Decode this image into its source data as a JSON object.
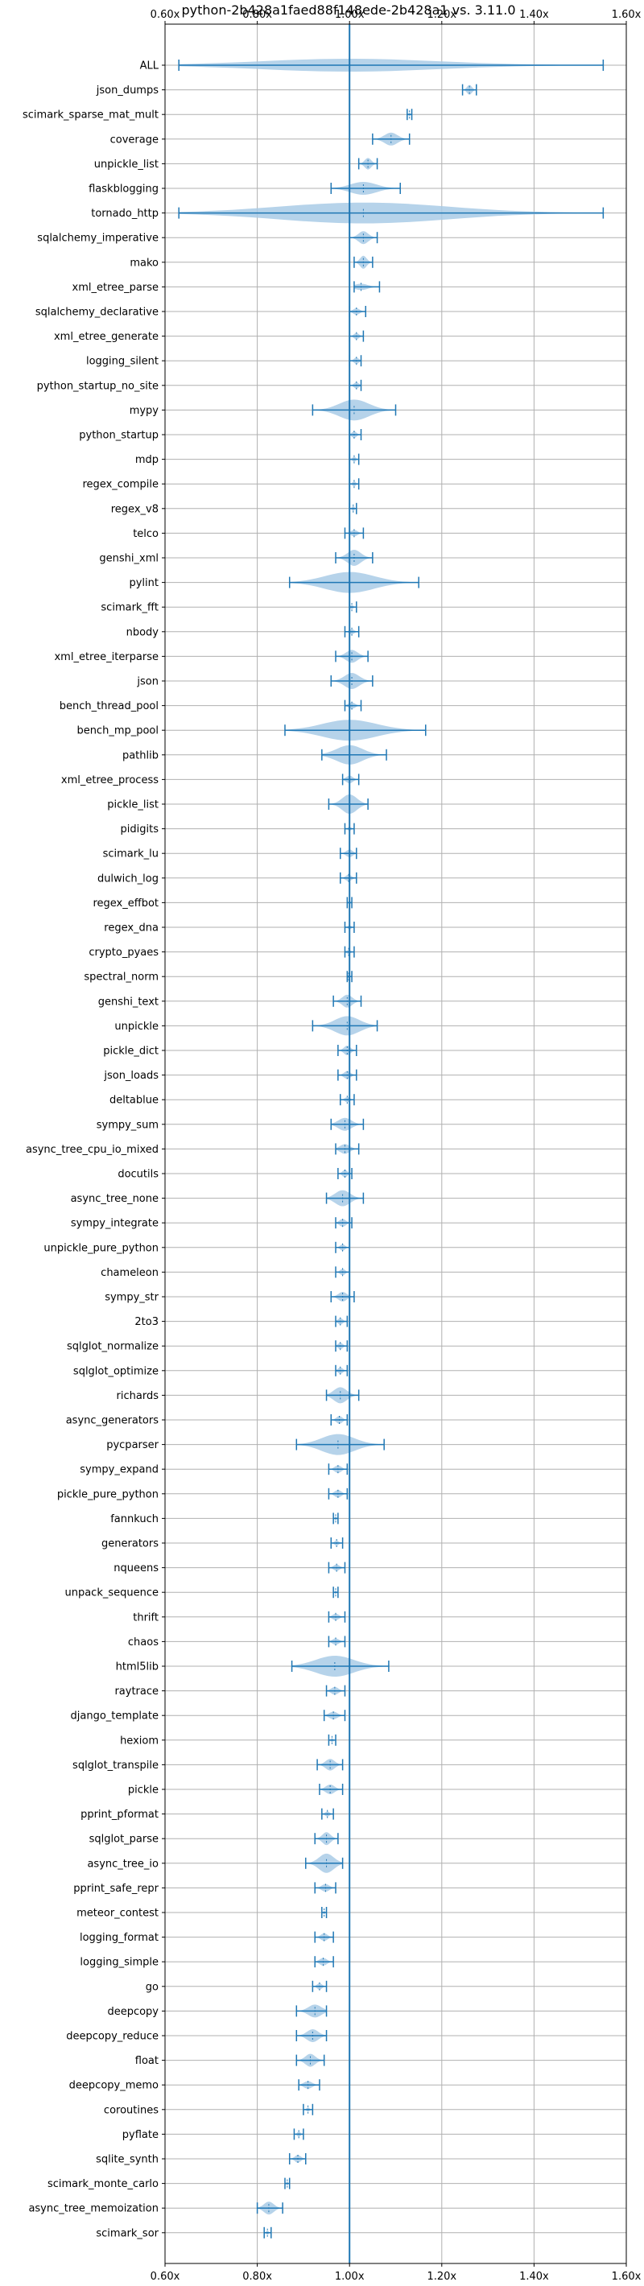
{
  "chart_data": {
    "type": "violin",
    "title": "python-2b428a1faed88f148ede-2b428a1 vs. 3.11.0",
    "xlabel": "",
    "ylabel": "",
    "xlim": [
      0.6,
      1.6
    ],
    "xticks": [
      0.6,
      0.8,
      1.0,
      1.2,
      1.4,
      1.6
    ],
    "xtick_labels": [
      "0.60x",
      "0.80x",
      "1.00x",
      "1.20x",
      "1.40x",
      "1.60x"
    ],
    "xtick_labels_top": true,
    "xtick_labels_bottom": true,
    "grid": true,
    "reference_line_x": 1.0,
    "colors": {
      "violin": "#a9cbe6",
      "whisker": "#1f77b4",
      "reference": "#1f77b4",
      "grid": "#b0b0b0"
    },
    "categories": [
      "ALL",
      "json_dumps",
      "scimark_sparse_mat_mult",
      "coverage",
      "unpickle_list",
      "flaskblogging",
      "tornado_http",
      "sqlalchemy_imperative",
      "mako",
      "xml_etree_parse",
      "sqlalchemy_declarative",
      "xml_etree_generate",
      "logging_silent",
      "python_startup_no_site",
      "mypy",
      "python_startup",
      "mdp",
      "regex_compile",
      "regex_v8",
      "telco",
      "genshi_xml",
      "pylint",
      "scimark_fft",
      "nbody",
      "xml_etree_iterparse",
      "json",
      "bench_thread_pool",
      "bench_mp_pool",
      "pathlib",
      "xml_etree_process",
      "pickle_list",
      "pidigits",
      "scimark_lu",
      "dulwich_log",
      "regex_effbot",
      "regex_dna",
      "crypto_pyaes",
      "spectral_norm",
      "genshi_text",
      "unpickle",
      "pickle_dict",
      "json_loads",
      "deltablue",
      "sympy_sum",
      "async_tree_cpu_io_mixed",
      "docutils",
      "async_tree_none",
      "sympy_integrate",
      "unpickle_pure_python",
      "chameleon",
      "sympy_str",
      "2to3",
      "sqlglot_normalize",
      "sqlglot_optimize",
      "richards",
      "async_generators",
      "pycparser",
      "sympy_expand",
      "pickle_pure_python",
      "fannkuch",
      "generators",
      "nqueens",
      "unpack_sequence",
      "thrift",
      "chaos",
      "html5lib",
      "raytrace",
      "django_template",
      "hexiom",
      "sqlglot_transpile",
      "pickle",
      "pprint_pformat",
      "sqlglot_parse",
      "async_tree_io",
      "pprint_safe_repr",
      "meteor_contest",
      "logging_format",
      "logging_simple",
      "go",
      "deepcopy",
      "deepcopy_reduce",
      "float",
      "deepcopy_memo",
      "coroutines",
      "pyflate",
      "sqlite_synth",
      "scimark_monte_carlo",
      "async_tree_memoization",
      "scimark_sor"
    ],
    "series": [
      {
        "min": 0.63,
        "max": 1.55,
        "median": 1.0,
        "width": 0.02
      },
      {
        "min": 1.245,
        "max": 1.275,
        "median": 1.26,
        "width": 0.015
      },
      {
        "min": 1.125,
        "max": 1.135,
        "median": 1.13,
        "width": 0.005
      },
      {
        "min": 1.05,
        "max": 1.13,
        "median": 1.09,
        "width": 0.02
      },
      {
        "min": 1.02,
        "max": 1.06,
        "median": 1.04,
        "width": 0.018
      },
      {
        "min": 0.96,
        "max": 1.11,
        "median": 1.03,
        "width": 0.02
      },
      {
        "min": 0.63,
        "max": 1.55,
        "median": 1.03,
        "width": 0.22
      },
      {
        "min": 1.0,
        "max": 1.06,
        "median": 1.03,
        "width": 0.02
      },
      {
        "min": 1.01,
        "max": 1.05,
        "median": 1.03,
        "width": 0.02
      },
      {
        "min": 1.01,
        "max": 1.065,
        "median": 1.025,
        "width": 0.01
      },
      {
        "min": 1.0,
        "max": 1.035,
        "median": 1.015,
        "width": 0.01
      },
      {
        "min": 1.0,
        "max": 1.03,
        "median": 1.015,
        "width": 0.01
      },
      {
        "min": 1.0,
        "max": 1.025,
        "median": 1.015,
        "width": 0.01
      },
      {
        "min": 1.0,
        "max": 1.025,
        "median": 1.015,
        "width": 0.01
      },
      {
        "min": 0.92,
        "max": 1.1,
        "median": 1.01,
        "width": 0.06
      },
      {
        "min": 1.0,
        "max": 1.025,
        "median": 1.01,
        "width": 0.01
      },
      {
        "min": 1.0,
        "max": 1.02,
        "median": 1.01,
        "width": 0.008
      },
      {
        "min": 1.0,
        "max": 1.02,
        "median": 1.01,
        "width": 0.008
      },
      {
        "min": 1.0,
        "max": 1.015,
        "median": 1.008,
        "width": 0.008
      },
      {
        "min": 0.99,
        "max": 1.03,
        "median": 1.01,
        "width": 0.01
      },
      {
        "min": 0.97,
        "max": 1.05,
        "median": 1.01,
        "width": 0.025
      },
      {
        "min": 0.87,
        "max": 1.15,
        "median": 1.0,
        "width": 0.05
      },
      {
        "min": 1.0,
        "max": 1.015,
        "median": 1.005,
        "width": 0.005
      },
      {
        "min": 0.99,
        "max": 1.02,
        "median": 1.005,
        "width": 0.008
      },
      {
        "min": 0.97,
        "max": 1.04,
        "median": 1.005,
        "width": 0.02
      },
      {
        "min": 0.96,
        "max": 1.05,
        "median": 1.005,
        "width": 0.025
      },
      {
        "min": 0.99,
        "max": 1.025,
        "median": 1.005,
        "width": 0.01
      },
      {
        "min": 0.86,
        "max": 1.165,
        "median": 1.0,
        "width": 0.08
      },
      {
        "min": 0.94,
        "max": 1.08,
        "median": 1.0,
        "width": 0.03
      },
      {
        "min": 0.985,
        "max": 1.02,
        "median": 1.0,
        "width": 0.012
      },
      {
        "min": 0.955,
        "max": 1.04,
        "median": 1.0,
        "width": 0.03
      },
      {
        "min": 0.99,
        "max": 1.01,
        "median": 1.0,
        "width": 0.005
      },
      {
        "min": 0.98,
        "max": 1.015,
        "median": 1.0,
        "width": 0.012
      },
      {
        "min": 0.98,
        "max": 1.015,
        "median": 0.998,
        "width": 0.01
      },
      {
        "min": 0.995,
        "max": 1.005,
        "median": 1.0,
        "width": 0.004
      },
      {
        "min": 0.99,
        "max": 1.01,
        "median": 1.0,
        "width": 0.005
      },
      {
        "min": 0.99,
        "max": 1.01,
        "median": 0.998,
        "width": 0.005
      },
      {
        "min": 0.995,
        "max": 1.005,
        "median": 0.998,
        "width": 0.004
      },
      {
        "min": 0.965,
        "max": 1.025,
        "median": 0.995,
        "width": 0.02
      },
      {
        "min": 0.92,
        "max": 1.06,
        "median": 0.995,
        "width": 0.03
      },
      {
        "min": 0.975,
        "max": 1.015,
        "median": 0.995,
        "width": 0.015
      },
      {
        "min": 0.975,
        "max": 1.015,
        "median": 0.995,
        "width": 0.012
      },
      {
        "min": 0.98,
        "max": 1.01,
        "median": 0.995,
        "width": 0.008
      },
      {
        "min": 0.96,
        "max": 1.03,
        "median": 0.99,
        "width": 0.02
      },
      {
        "min": 0.97,
        "max": 1.02,
        "median": 0.99,
        "width": 0.015
      },
      {
        "min": 0.975,
        "max": 1.005,
        "median": 0.99,
        "width": 0.012
      },
      {
        "min": 0.95,
        "max": 1.03,
        "median": 0.985,
        "width": 0.025
      },
      {
        "min": 0.97,
        "max": 1.005,
        "median": 0.985,
        "width": 0.012
      },
      {
        "min": 0.97,
        "max": 1.0,
        "median": 0.985,
        "width": 0.01
      },
      {
        "min": 0.97,
        "max": 1.0,
        "median": 0.985,
        "width": 0.01
      },
      {
        "min": 0.96,
        "max": 1.01,
        "median": 0.985,
        "width": 0.015
      },
      {
        "min": 0.97,
        "max": 0.995,
        "median": 0.98,
        "width": 0.01
      },
      {
        "min": 0.97,
        "max": 0.995,
        "median": 0.98,
        "width": 0.01
      },
      {
        "min": 0.97,
        "max": 0.995,
        "median": 0.98,
        "width": 0.01
      },
      {
        "min": 0.95,
        "max": 1.02,
        "median": 0.98,
        "width": 0.025
      },
      {
        "min": 0.96,
        "max": 0.995,
        "median": 0.978,
        "width": 0.012
      },
      {
        "min": 0.885,
        "max": 1.075,
        "median": 0.975,
        "width": 0.05
      },
      {
        "min": 0.955,
        "max": 0.995,
        "median": 0.975,
        "width": 0.012
      },
      {
        "min": 0.955,
        "max": 0.995,
        "median": 0.975,
        "width": 0.012
      },
      {
        "min": 0.965,
        "max": 0.975,
        "median": 0.97,
        "width": 0.004
      },
      {
        "min": 0.96,
        "max": 0.985,
        "median": 0.972,
        "width": 0.008
      },
      {
        "min": 0.955,
        "max": 0.99,
        "median": 0.972,
        "width": 0.01
      },
      {
        "min": 0.965,
        "max": 0.975,
        "median": 0.97,
        "width": 0.004
      },
      {
        "min": 0.955,
        "max": 0.99,
        "median": 0.97,
        "width": 0.01
      },
      {
        "min": 0.955,
        "max": 0.99,
        "median": 0.97,
        "width": 0.01
      },
      {
        "min": 0.875,
        "max": 1.085,
        "median": 0.968,
        "width": 0.05
      },
      {
        "min": 0.95,
        "max": 0.99,
        "median": 0.968,
        "width": 0.012
      },
      {
        "min": 0.945,
        "max": 0.99,
        "median": 0.965,
        "width": 0.012
      },
      {
        "min": 0.955,
        "max": 0.97,
        "median": 0.962,
        "width": 0.005
      },
      {
        "min": 0.93,
        "max": 0.985,
        "median": 0.958,
        "width": 0.018
      },
      {
        "min": 0.935,
        "max": 0.985,
        "median": 0.958,
        "width": 0.015
      },
      {
        "min": 0.94,
        "max": 0.965,
        "median": 0.952,
        "width": 0.008
      },
      {
        "min": 0.925,
        "max": 0.975,
        "median": 0.95,
        "width": 0.02
      },
      {
        "min": 0.905,
        "max": 0.985,
        "median": 0.95,
        "width": 0.03
      },
      {
        "min": 0.925,
        "max": 0.97,
        "median": 0.948,
        "width": 0.012
      },
      {
        "min": 0.94,
        "max": 0.95,
        "median": 0.945,
        "width": 0.004
      },
      {
        "min": 0.925,
        "max": 0.965,
        "median": 0.945,
        "width": 0.012
      },
      {
        "min": 0.925,
        "max": 0.965,
        "median": 0.943,
        "width": 0.012
      },
      {
        "min": 0.92,
        "max": 0.95,
        "median": 0.935,
        "width": 0.01
      },
      {
        "min": 0.885,
        "max": 0.95,
        "median": 0.925,
        "width": 0.02
      },
      {
        "min": 0.885,
        "max": 0.95,
        "median": 0.92,
        "width": 0.02
      },
      {
        "min": 0.885,
        "max": 0.945,
        "median": 0.915,
        "width": 0.02
      },
      {
        "min": 0.89,
        "max": 0.935,
        "median": 0.91,
        "width": 0.012
      },
      {
        "min": 0.9,
        "max": 0.92,
        "median": 0.91,
        "width": 0.006
      },
      {
        "min": 0.88,
        "max": 0.9,
        "median": 0.89,
        "width": 0.008
      },
      {
        "min": 0.87,
        "max": 0.905,
        "median": 0.888,
        "width": 0.012
      },
      {
        "min": 0.86,
        "max": 0.87,
        "median": 0.865,
        "width": 0.004
      },
      {
        "min": 0.8,
        "max": 0.855,
        "median": 0.825,
        "width": 0.02
      },
      {
        "min": 0.815,
        "max": 0.83,
        "median": 0.822,
        "width": 0.005
      }
    ]
  }
}
